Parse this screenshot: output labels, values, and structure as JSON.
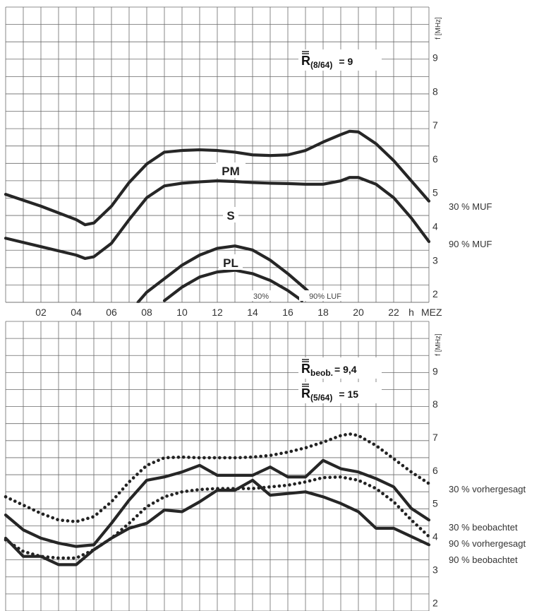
{
  "chart_data": [
    {
      "type": "line",
      "panel": "top",
      "x_unit": "h",
      "x_label_suffix": "MEZ",
      "y_unit_label": "f [MHz]",
      "xlim": [
        0,
        24
      ],
      "ylim": [
        1.75,
        10.5
      ],
      "x_ticks": [
        2,
        4,
        6,
        8,
        10,
        12,
        14,
        16,
        18,
        20,
        22
      ],
      "x_tick_labels": [
        "02",
        "04",
        "06",
        "08",
        "10",
        "12",
        "14",
        "16",
        "18",
        "20",
        "22"
      ],
      "y_ticks": [
        2,
        3,
        4,
        5,
        6,
        7,
        8,
        9
      ],
      "annotation": {
        "bar": "R",
        "sub": "(8/64)",
        "value": "= 9"
      },
      "curve_labels": {
        "PM": "PM",
        "S": "S",
        "PL": "PL",
        "luf30": "30%",
        "luf90": "90% LUF"
      },
      "right_labels": [
        "30 % MUF",
        "90 % MUF"
      ],
      "series": [
        {
          "name": "30 % MUF",
          "style": "solid",
          "x": [
            0,
            2,
            4,
            4.5,
            5,
            6,
            7,
            8,
            9,
            10,
            11,
            12,
            13,
            14,
            15,
            16,
            17,
            18,
            19,
            19.5,
            20,
            21,
            22,
            23,
            24
          ],
          "y": [
            4.95,
            4.6,
            4.2,
            4.05,
            4.1,
            4.6,
            5.3,
            5.85,
            6.2,
            6.25,
            6.27,
            6.25,
            6.2,
            6.12,
            6.1,
            6.12,
            6.25,
            6.5,
            6.72,
            6.82,
            6.8,
            6.45,
            5.95,
            5.35,
            4.75
          ]
        },
        {
          "name": "90 % MUF",
          "style": "solid",
          "x": [
            0,
            2,
            4,
            4.5,
            5,
            6,
            7,
            8,
            9,
            10,
            11,
            12,
            13,
            14,
            15,
            16,
            17,
            18,
            19,
            19.5,
            20,
            21,
            22,
            23,
            24
          ],
          "y": [
            3.65,
            3.4,
            3.15,
            3.05,
            3.1,
            3.5,
            4.2,
            4.85,
            5.2,
            5.28,
            5.32,
            5.35,
            5.33,
            5.3,
            5.28,
            5.27,
            5.25,
            5.25,
            5.35,
            5.45,
            5.45,
            5.25,
            4.85,
            4.25,
            3.55
          ]
        },
        {
          "name": "30 % LUF",
          "style": "solid",
          "x": [
            7.5,
            8,
            9,
            10,
            11,
            12,
            13,
            14,
            15,
            16,
            17,
            17.5
          ],
          "y": [
            1.75,
            2.05,
            2.45,
            2.85,
            3.15,
            3.35,
            3.42,
            3.3,
            3.0,
            2.6,
            2.15,
            1.9
          ]
        },
        {
          "name": "90 % LUF",
          "style": "solid",
          "x": [
            9,
            10,
            11,
            12,
            13,
            14,
            15,
            16,
            16.8
          ],
          "y": [
            1.8,
            2.2,
            2.5,
            2.65,
            2.7,
            2.6,
            2.4,
            2.1,
            1.8
          ]
        }
      ]
    },
    {
      "type": "line",
      "panel": "bottom",
      "y_unit_label": "f [MHz]",
      "xlim": [
        0,
        24
      ],
      "ylim": [
        1.75,
        10.5
      ],
      "y_ticks": [
        2,
        3,
        4,
        5,
        6,
        7,
        8,
        9
      ],
      "annotation": [
        {
          "bar": "R",
          "sub": "beob.",
          "value": "= 9,4"
        },
        {
          "bar": "R",
          "sub": "(5/64)",
          "value": "= 15"
        }
      ],
      "right_labels": [
        "30 % vorhergesagt",
        "30 % beobachtet",
        "90 % vorhergesagt",
        "90 % beobachtet"
      ],
      "series": [
        {
          "name": "30 % vorhergesagt",
          "style": "dotted",
          "x": [
            0,
            1,
            2,
            3,
            4,
            5,
            6,
            7,
            8,
            9,
            10,
            11,
            12,
            13,
            14,
            15,
            16,
            17,
            18,
            19,
            19.5,
            20,
            21,
            22,
            23,
            24
          ],
          "y": [
            5.2,
            4.95,
            4.7,
            4.5,
            4.45,
            4.6,
            5.05,
            5.65,
            6.15,
            6.38,
            6.4,
            6.38,
            6.38,
            6.38,
            6.4,
            6.45,
            6.55,
            6.68,
            6.85,
            7.05,
            7.1,
            7.05,
            6.75,
            6.35,
            5.95,
            5.6
          ]
        },
        {
          "name": "30 % beobachtet",
          "style": "solid",
          "x": [
            0,
            1,
            2,
            3,
            4,
            5,
            6,
            7,
            8,
            9,
            10,
            11,
            12,
            13,
            14,
            15,
            16,
            17,
            18,
            19,
            20,
            21,
            22,
            23,
            24
          ],
          "y": [
            4.65,
            4.2,
            3.95,
            3.8,
            3.7,
            3.75,
            4.4,
            5.1,
            5.7,
            5.8,
            5.95,
            6.15,
            5.85,
            5.85,
            5.85,
            6.1,
            5.8,
            5.8,
            6.3,
            6.05,
            5.95,
            5.75,
            5.5,
            4.85,
            4.5
          ]
        },
        {
          "name": "90 % vorhergesagt",
          "style": "dotted",
          "x": [
            0,
            1,
            2,
            3,
            4,
            5,
            6,
            7,
            8,
            9,
            10,
            11,
            12,
            13,
            14,
            15,
            16,
            17,
            18,
            19,
            20,
            21,
            22,
            23,
            24
          ],
          "y": [
            3.9,
            3.55,
            3.4,
            3.35,
            3.35,
            3.6,
            3.95,
            4.4,
            4.9,
            5.2,
            5.35,
            5.42,
            5.45,
            5.45,
            5.45,
            5.5,
            5.55,
            5.65,
            5.78,
            5.8,
            5.7,
            5.45,
            5.05,
            4.5,
            4.0
          ]
        },
        {
          "name": "90 % beobachtet",
          "style": "solid",
          "x": [
            0,
            1,
            2,
            3,
            4,
            5,
            6,
            7,
            8,
            9,
            10,
            11,
            12,
            13,
            14,
            15,
            16,
            17,
            18,
            19,
            20,
            21,
            22,
            23,
            24
          ],
          "y": [
            3.95,
            3.4,
            3.4,
            3.15,
            3.15,
            3.6,
            3.95,
            4.25,
            4.4,
            4.8,
            4.75,
            5.05,
            5.4,
            5.4,
            5.7,
            5.25,
            5.3,
            5.35,
            5.2,
            5.0,
            4.75,
            4.25,
            4.25,
            4.0,
            3.75
          ]
        }
      ]
    }
  ]
}
